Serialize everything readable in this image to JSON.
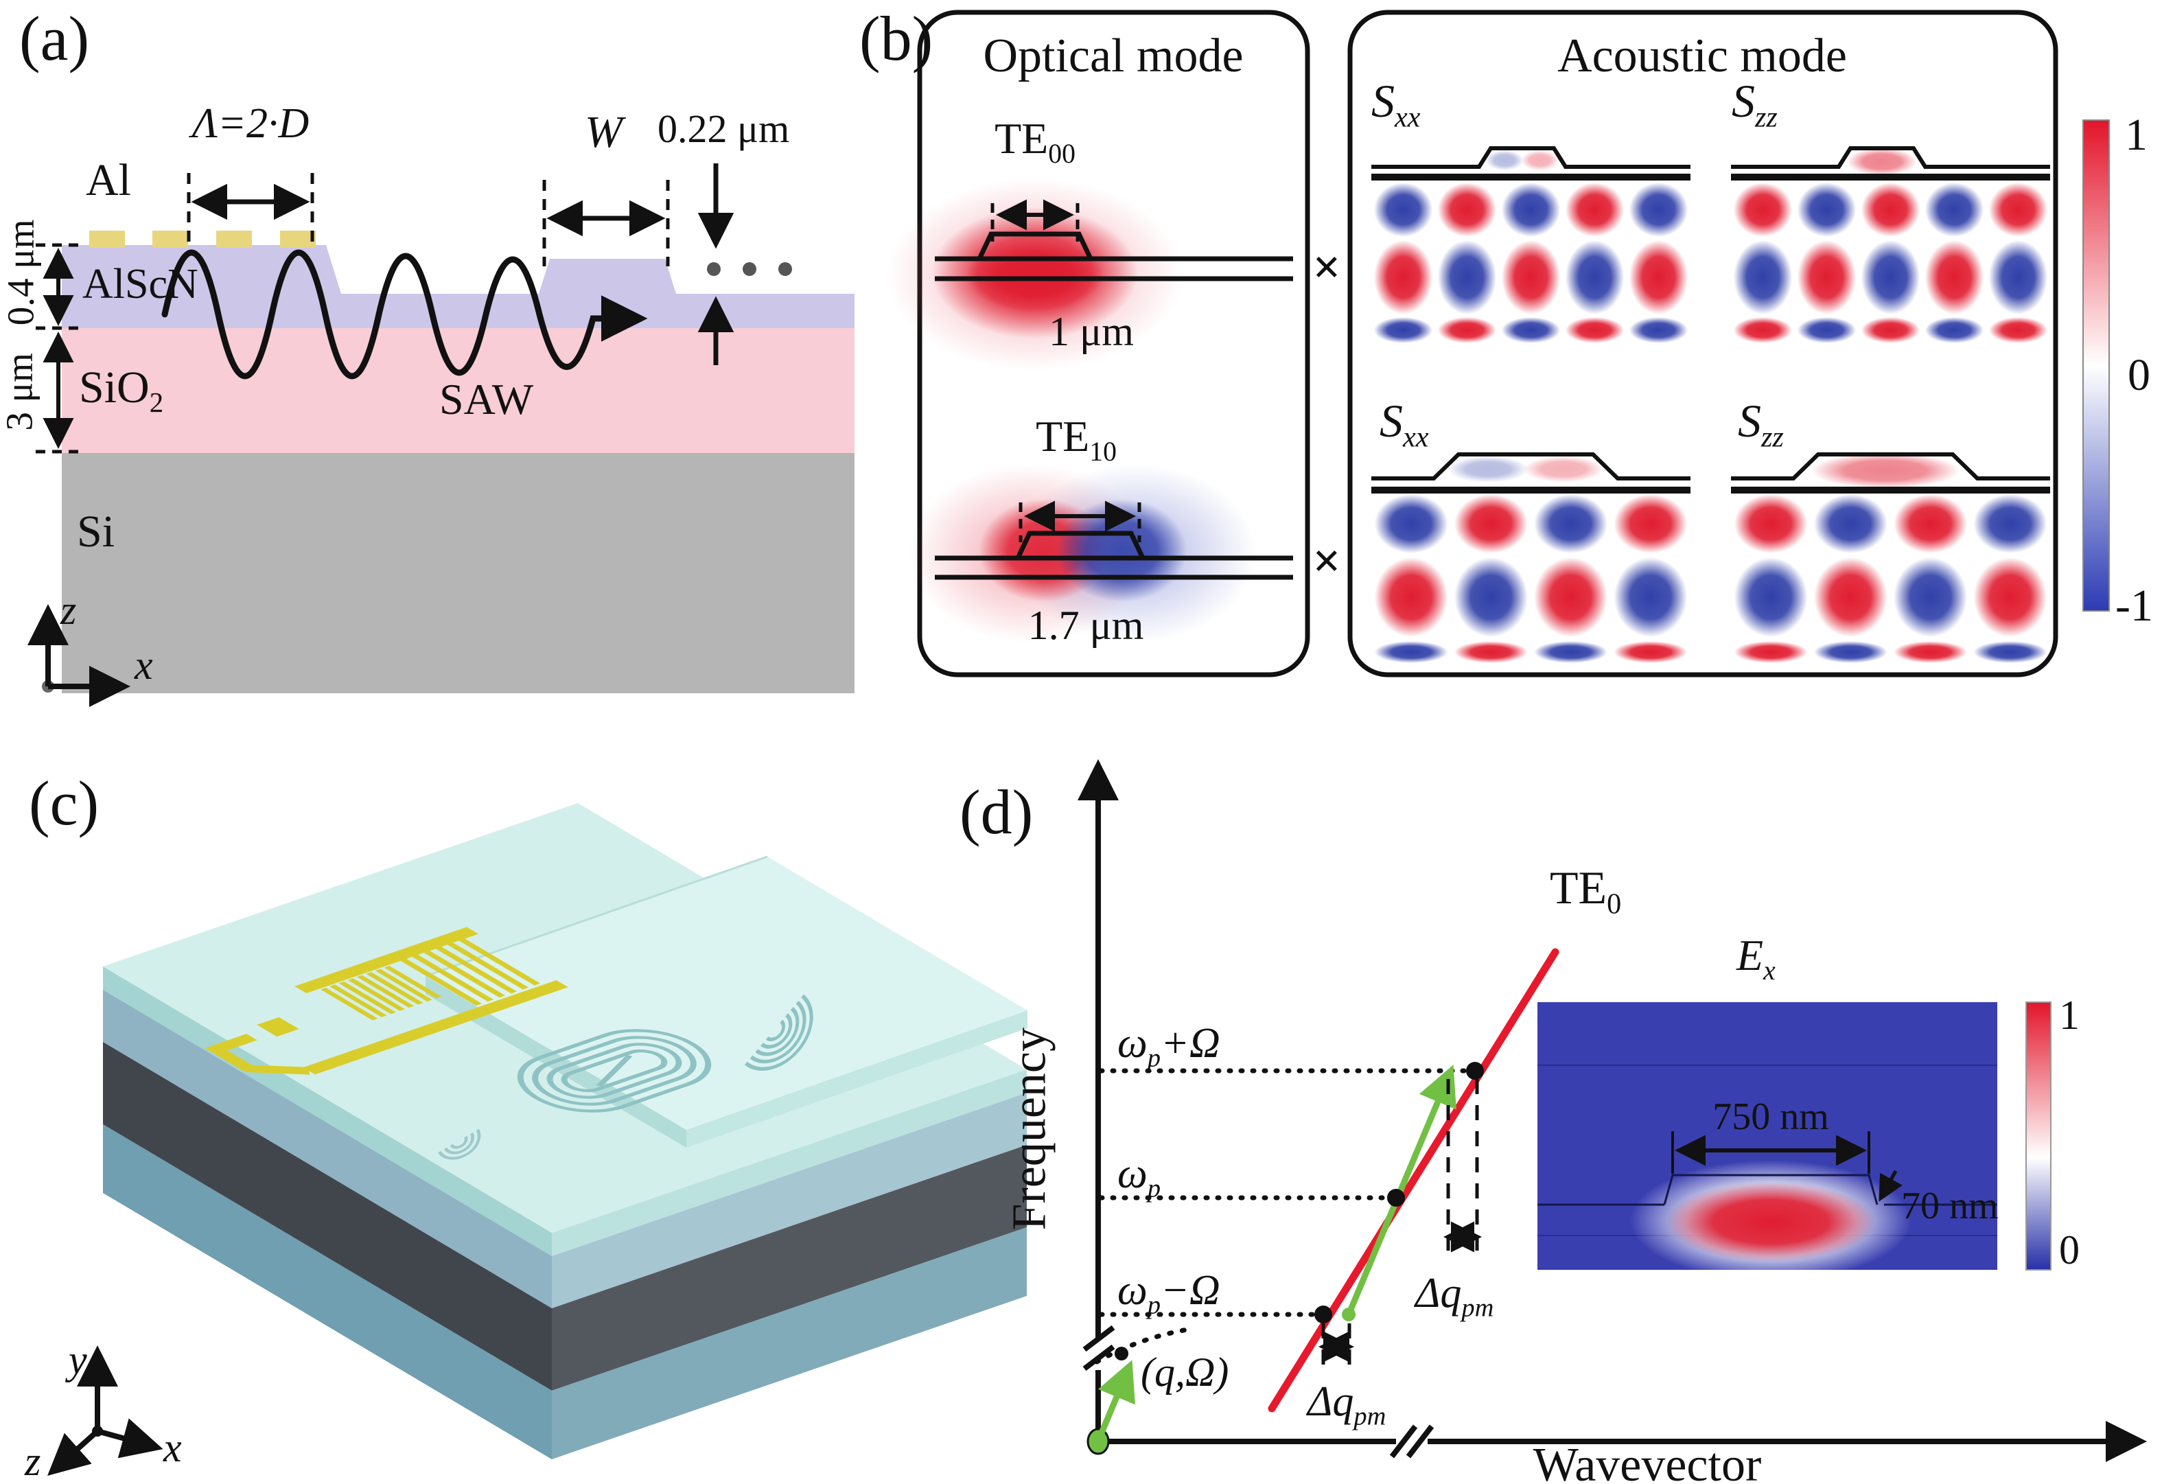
{
  "colors": {
    "al_yellow": "#e8d67c",
    "alscn_lavender": "#ccc6e9",
    "sio2_pink": "#f9cdd5",
    "si_gray": "#b5b5b5",
    "strain_red": "#e01d30",
    "strain_blue": "#3040a8",
    "te0_line_red": "#e8192c",
    "phonon_green": "#72c043",
    "chip_top_cyan": "#d3efec",
    "chip_side_dark": "#41464d",
    "chip_side_teal": "#6f9fb0",
    "inset_blue": "#3a3fb0",
    "idt_yellow": "#d9cd2c"
  },
  "panels": {
    "a": {
      "tag": "(a)",
      "period": "Λ=2·D",
      "al": "Al",
      "alscn": "AlScN",
      "sio2": {
        "base": "SiO",
        "sub": "2"
      },
      "si": "Si",
      "saw": "SAW",
      "waveguide_width": "W",
      "ridge_height": "0.22 μm",
      "alscn_thickness": "0.4 μm",
      "sio2_thickness": "3 μm",
      "axis": {
        "z": "z",
        "x": "x"
      }
    },
    "b": {
      "tag": "(b)",
      "optical": {
        "title": "Optical mode",
        "times": "×",
        "modes": [
          {
            "name": {
              "base": "TE",
              "sub": "00"
            },
            "width_label": "1 μm"
          },
          {
            "name": {
              "base": "TE",
              "sub": "10"
            },
            "width_label": "1.7 μm"
          }
        ]
      },
      "acoustic": {
        "title": "Acoustic mode",
        "maps": [
          {
            "name": {
              "base": "S",
              "sub": "xx"
            },
            "row": "top",
            "slot": 0,
            "cols": 5,
            "band_signs": [
              "B",
              "R",
              "B"
            ]
          },
          {
            "name": {
              "base": "S",
              "sub": "zz"
            },
            "row": "top",
            "slot": 1,
            "cols": 5,
            "band_signs": [
              "R",
              "B",
              "R"
            ]
          },
          {
            "name": {
              "base": "S",
              "sub": "xx"
            },
            "row": "bottom",
            "slot": 0,
            "cols": 4,
            "band_signs": [
              "B",
              "R",
              "B"
            ]
          },
          {
            "name": {
              "base": "S",
              "sub": "zz"
            },
            "row": "bottom",
            "slot": 1,
            "cols": 4,
            "band_signs": [
              "R",
              "B",
              "R"
            ]
          }
        ]
      },
      "colorbar": {
        "max": "1",
        "mid": "0",
        "min": "-1"
      }
    },
    "c": {
      "tag": "(c)",
      "axis": {
        "y": "y",
        "x": "x",
        "z": "z"
      }
    },
    "d": {
      "tag": "(d)",
      "ylabel": "Frequency",
      "xlabel": "Wavevector",
      "freq_ticks": [
        {
          "base": "ω",
          "sub": "p",
          "suffix": "+Ω"
        },
        {
          "base": "ω",
          "sub": "p",
          "suffix": ""
        },
        {
          "base": "ω",
          "sub": "p",
          "suffix": "−Ω"
        }
      ],
      "mode_line": {
        "base": "TE",
        "sub": "0"
      },
      "phase_mismatch": {
        "base": "Δq",
        "sub": "pm"
      },
      "phonon": "(q,Ω)",
      "inset": {
        "title": {
          "base": "E",
          "sub": "x"
        },
        "width_label": "750 nm",
        "height_label": "70 nm",
        "colorbar": {
          "max": "1",
          "min": "0"
        }
      }
    }
  }
}
